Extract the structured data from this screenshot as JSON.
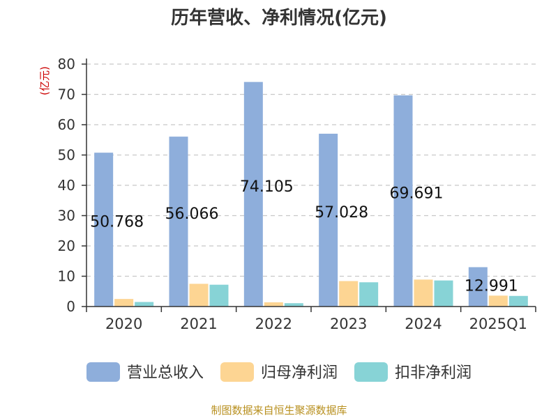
{
  "chart_data": {
    "type": "bar",
    "title": "历年营收、净利情况(亿元)",
    "ylabel": "(亿元)",
    "xlabel": "",
    "categories": [
      "2020",
      "2021",
      "2022",
      "2023",
      "2024",
      "2025Q1"
    ],
    "ylim": [
      0,
      80
    ],
    "yticks": [
      0,
      10,
      20,
      30,
      40,
      50,
      60,
      70,
      80
    ],
    "grid": true,
    "legend_position": "bottom",
    "series": [
      {
        "name": "营业总收入",
        "color": "#8eaedb",
        "values": [
          50.768,
          56.066,
          74.105,
          57.028,
          69.691,
          12.991
        ],
        "labels": [
          "50.768",
          "56.066",
          "74.105",
          "57.028",
          "69.691",
          "12.991"
        ]
      },
      {
        "name": "归母净利润",
        "color": "#fdd593",
        "values": [
          2.5,
          7.5,
          1.4,
          8.4,
          8.9,
          3.6
        ]
      },
      {
        "name": "扣非净利润",
        "color": "#87d3d6",
        "values": [
          1.5,
          7.2,
          1.1,
          8.0,
          8.6,
          3.5
        ]
      }
    ]
  },
  "source": "制图数据来自恒生聚源数据库"
}
